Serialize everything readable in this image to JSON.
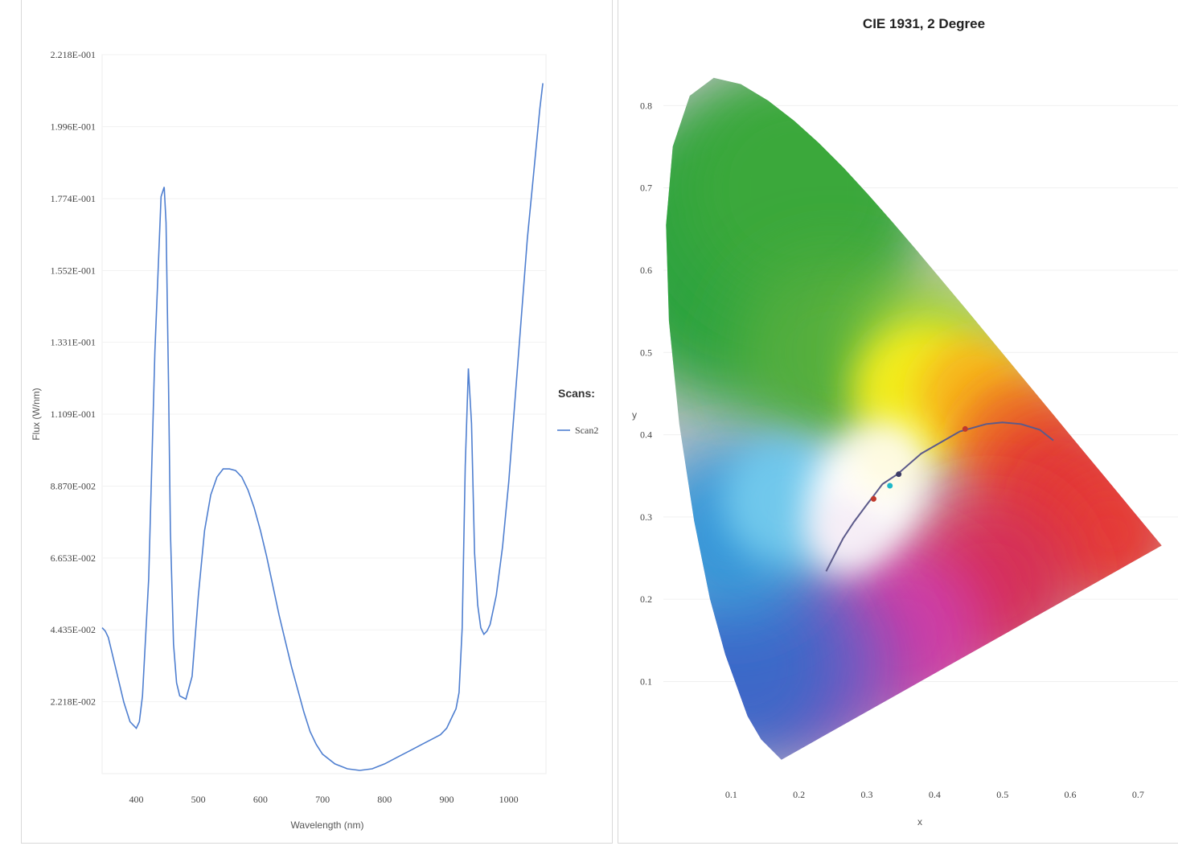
{
  "chart_data": [
    {
      "type": "line",
      "title": "",
      "xlabel": "Wavelength (nm)",
      "ylabel": "Flux (W/nm)",
      "xlim": [
        345,
        1060
      ],
      "ylim": [
        0.0,
        0.2218
      ],
      "x_ticks": [
        "400",
        "500",
        "600",
        "700",
        "800",
        "900",
        "1000"
      ],
      "x_tick_values": [
        400,
        500,
        600,
        700,
        800,
        900,
        1000
      ],
      "y_ticks": [
        "2.218E-002",
        "4.435E-002",
        "6.653E-002",
        "8.870E-002",
        "1.109E-001",
        "1.331E-001",
        "1.552E-001",
        "1.774E-001",
        "1.996E-001",
        "2.218E-001"
      ],
      "y_tick_values": [
        0.02218,
        0.04435,
        0.06653,
        0.0887,
        0.1109,
        0.1331,
        0.1552,
        0.1774,
        0.1996,
        0.2218
      ],
      "legend": {
        "title": "Scans:",
        "position": "right"
      },
      "series": [
        {
          "name": "Scan2",
          "color": "#4f7fd0",
          "x": [
            345,
            350,
            355,
            360,
            370,
            380,
            390,
            400,
            405,
            410,
            420,
            430,
            440,
            445,
            448,
            452,
            455,
            460,
            465,
            470,
            480,
            490,
            500,
            510,
            520,
            530,
            540,
            550,
            560,
            570,
            580,
            590,
            600,
            610,
            620,
            630,
            640,
            650,
            660,
            670,
            680,
            690,
            700,
            720,
            740,
            760,
            780,
            800,
            820,
            840,
            860,
            880,
            890,
            900,
            910,
            915,
            920,
            925,
            930,
            935,
            940,
            945,
            950,
            955,
            960,
            965,
            970,
            980,
            990,
            1000,
            1010,
            1020,
            1030,
            1040,
            1050,
            1055
          ],
          "y": [
            0.045,
            0.044,
            0.042,
            0.038,
            0.03,
            0.022,
            0.016,
            0.014,
            0.016,
            0.024,
            0.06,
            0.13,
            0.178,
            0.181,
            0.17,
            0.12,
            0.075,
            0.04,
            0.028,
            0.024,
            0.023,
            0.03,
            0.055,
            0.075,
            0.086,
            0.0915,
            0.094,
            0.094,
            0.0935,
            0.0915,
            0.0875,
            0.082,
            0.075,
            0.067,
            0.058,
            0.049,
            0.041,
            0.033,
            0.026,
            0.019,
            0.013,
            0.009,
            0.006,
            0.003,
            0.0015,
            0.001,
            0.0015,
            0.003,
            0.005,
            0.007,
            0.009,
            0.011,
            0.012,
            0.014,
            0.018,
            0.02,
            0.025,
            0.045,
            0.095,
            0.125,
            0.108,
            0.068,
            0.052,
            0.045,
            0.043,
            0.044,
            0.046,
            0.055,
            0.07,
            0.09,
            0.115,
            0.14,
            0.165,
            0.185,
            0.205,
            0.213
          ]
        }
      ]
    },
    {
      "type": "scatter",
      "title": "CIE 1931, 2 Degree",
      "xlabel": "x",
      "ylabel": "y",
      "xlim": [
        0.0,
        0.76
      ],
      "ylim": [
        -0.01,
        0.86
      ],
      "x_ticks": [
        "0.1",
        "0.2",
        "0.3",
        "0.4",
        "0.5",
        "0.6",
        "0.7"
      ],
      "x_tick_values": [
        0.1,
        0.2,
        0.3,
        0.4,
        0.5,
        0.6,
        0.7
      ],
      "y_ticks": [
        "0.1",
        "0.2",
        "0.3",
        "0.4",
        "0.5",
        "0.6",
        "0.7",
        "0.8"
      ],
      "y_tick_values": [
        0.1,
        0.2,
        0.3,
        0.4,
        0.5,
        0.6,
        0.7,
        0.8
      ],
      "spectral_locus": {
        "x": [
          0.1741,
          0.144,
          0.1241,
          0.0913,
          0.0687,
          0.0454,
          0.0235,
          0.0082,
          0.0039,
          0.0139,
          0.0389,
          0.0743,
          0.1142,
          0.1547,
          0.1929,
          0.2296,
          0.2658,
          0.3016,
          0.3373,
          0.3731,
          0.4087,
          0.4441,
          0.4788,
          0.5125,
          0.5448,
          0.5752,
          0.6029,
          0.627,
          0.6482,
          0.6658,
          0.6801,
          0.6915,
          0.7006,
          0.7079,
          0.714,
          0.7347
        ],
        "y": [
          0.005,
          0.0297,
          0.0578,
          0.1327,
          0.2007,
          0.295,
          0.4127,
          0.5384,
          0.6548,
          0.7502,
          0.812,
          0.8338,
          0.8262,
          0.8059,
          0.7816,
          0.7543,
          0.7243,
          0.6923,
          0.6589,
          0.6245,
          0.5896,
          0.5547,
          0.5202,
          0.4866,
          0.4544,
          0.4242,
          0.3965,
          0.3725,
          0.3514,
          0.334,
          0.3197,
          0.3083,
          0.2993,
          0.292,
          0.2859,
          0.2653
        ]
      },
      "planckian_locus": {
        "x": [
          0.24,
          0.253,
          0.265,
          0.281,
          0.3,
          0.313,
          0.323,
          0.345,
          0.38,
          0.437,
          0.476,
          0.5,
          0.527,
          0.555,
          0.575
        ],
        "y": [
          0.234,
          0.255,
          0.274,
          0.294,
          0.315,
          0.329,
          0.34,
          0.352,
          0.377,
          0.404,
          0.413,
          0.415,
          0.413,
          0.406,
          0.393
        ]
      },
      "points": [
        {
          "x": 0.31,
          "y": 0.322,
          "color": "#c0392b"
        },
        {
          "x": 0.334,
          "y": 0.338,
          "color": "#1fb8c9"
        },
        {
          "x": 0.347,
          "y": 0.352,
          "color": "#3d3d66"
        },
        {
          "x": 0.445,
          "y": 0.407,
          "color": "#c0392b"
        }
      ]
    }
  ]
}
